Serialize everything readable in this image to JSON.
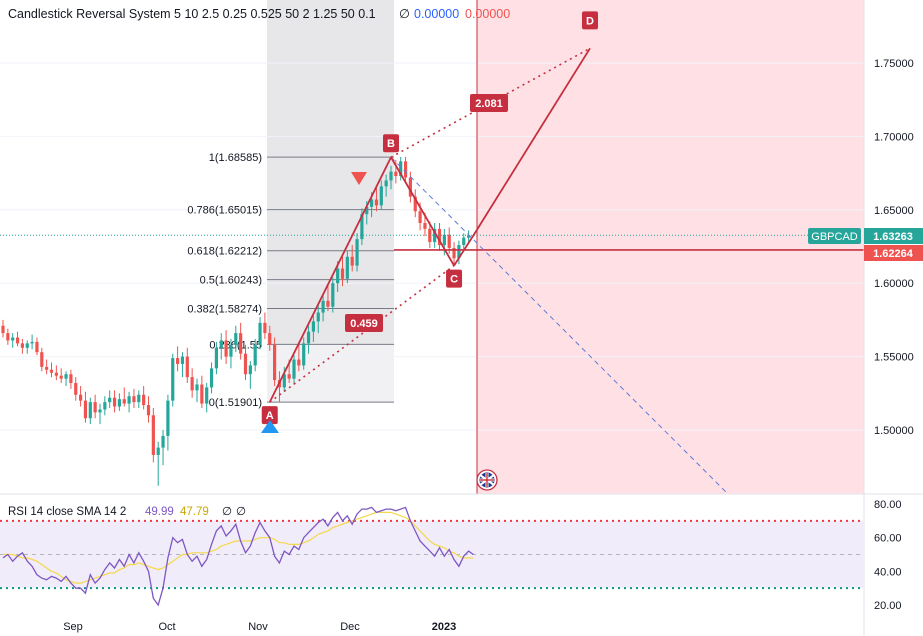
{
  "header": {
    "title": "Candlestick Reversal System 5 10 2.5 0.25 0.525 50 2 1.25 50 0.1",
    "null_symbol": "∅",
    "value_1": "0.00000",
    "value_2": "0.00000"
  },
  "price_axis": {
    "ticks": [
      "1.75000",
      "1.70000",
      "1.65000",
      "1.60000",
      "1.55000",
      "1.50000"
    ],
    "symbol": "GBPCAD",
    "last_price": "1.63263",
    "line_price": "1.62264"
  },
  "time_axis": {
    "labels": [
      "Sep",
      "Oct",
      "Nov",
      "Dec",
      "2023"
    ]
  },
  "fib_levels": [
    {
      "label": "1(1.68585)",
      "price": 1.68585
    },
    {
      "label": "0.786(1.65015)",
      "price": 1.65015
    },
    {
      "label": "0.618(1.62212)",
      "price": 1.62212
    },
    {
      "label": "0.5(1.60243)",
      "price": 1.60243
    },
    {
      "label": "0.382(1.58274)",
      "price": 1.58274
    },
    {
      "label": "0.236(1.55",
      "price": 1.55836
    },
    {
      "label": "0(1.51901)",
      "price": 1.51901
    }
  ],
  "pattern": {
    "points": {
      "A": "A",
      "B": "B",
      "C": "C",
      "D": "D"
    },
    "ratio_bd": "2.081",
    "ratio_ac": "0.459"
  },
  "rsi": {
    "title": "RSI 14 close SMA 14 2",
    "value": "49.99",
    "sma": "47.79",
    "null_1": "∅",
    "null_2": "∅",
    "ticks": [
      "80.00",
      "60.00",
      "40.00",
      "20.00"
    ]
  },
  "colors": {
    "up": "#26a69a",
    "down": "#ef5350",
    "pattern": "#c62f3f",
    "rsi_line": "#7e57c2",
    "rsi_sma": "#f5d84a",
    "blue": "#2962ff",
    "shade": "#ffe0e3",
    "fib_bg": "#e7e7e9"
  },
  "chart_data": {
    "type": "candlestick",
    "symbol": "GBPCAD",
    "y_range": [
      1.46,
      1.785
    ],
    "rsi_range": [
      18,
      82
    ],
    "candles": [
      {
        "o": 1.571,
        "h": 1.575,
        "l": 1.563,
        "c": 1.566
      },
      {
        "o": 1.566,
        "h": 1.569,
        "l": 1.558,
        "c": 1.561
      },
      {
        "o": 1.561,
        "h": 1.566,
        "l": 1.556,
        "c": 1.563
      },
      {
        "o": 1.563,
        "h": 1.567,
        "l": 1.557,
        "c": 1.559
      },
      {
        "o": 1.559,
        "h": 1.562,
        "l": 1.552,
        "c": 1.556
      },
      {
        "o": 1.556,
        "h": 1.561,
        "l": 1.552,
        "c": 1.559
      },
      {
        "o": 1.559,
        "h": 1.565,
        "l": 1.555,
        "c": 1.56
      },
      {
        "o": 1.56,
        "h": 1.563,
        "l": 1.551,
        "c": 1.553
      },
      {
        "o": 1.553,
        "h": 1.556,
        "l": 1.54,
        "c": 1.543
      },
      {
        "o": 1.543,
        "h": 1.548,
        "l": 1.538,
        "c": 1.541
      },
      {
        "o": 1.541,
        "h": 1.546,
        "l": 1.536,
        "c": 1.539
      },
      {
        "o": 1.539,
        "h": 1.544,
        "l": 1.534,
        "c": 1.537
      },
      {
        "o": 1.537,
        "h": 1.542,
        "l": 1.532,
        "c": 1.535
      },
      {
        "o": 1.535,
        "h": 1.54,
        "l": 1.53,
        "c": 1.538
      },
      {
        "o": 1.538,
        "h": 1.541,
        "l": 1.528,
        "c": 1.532
      },
      {
        "o": 1.532,
        "h": 1.536,
        "l": 1.52,
        "c": 1.524
      },
      {
        "o": 1.524,
        "h": 1.53,
        "l": 1.516,
        "c": 1.52
      },
      {
        "o": 1.52,
        "h": 1.526,
        "l": 1.505,
        "c": 1.508
      },
      {
        "o": 1.508,
        "h": 1.522,
        "l": 1.504,
        "c": 1.519
      },
      {
        "o": 1.519,
        "h": 1.524,
        "l": 1.508,
        "c": 1.512
      },
      {
        "o": 1.512,
        "h": 1.518,
        "l": 1.504,
        "c": 1.514
      },
      {
        "o": 1.514,
        "h": 1.523,
        "l": 1.51,
        "c": 1.519
      },
      {
        "o": 1.519,
        "h": 1.527,
        "l": 1.515,
        "c": 1.522
      },
      {
        "o": 1.522,
        "h": 1.527,
        "l": 1.512,
        "c": 1.516
      },
      {
        "o": 1.516,
        "h": 1.525,
        "l": 1.513,
        "c": 1.521
      },
      {
        "o": 1.521,
        "h": 1.529,
        "l": 1.516,
        "c": 1.518
      },
      {
        "o": 1.518,
        "h": 1.526,
        "l": 1.512,
        "c": 1.523
      },
      {
        "o": 1.523,
        "h": 1.528,
        "l": 1.515,
        "c": 1.519
      },
      {
        "o": 1.519,
        "h": 1.527,
        "l": 1.515,
        "c": 1.524
      },
      {
        "o": 1.524,
        "h": 1.53,
        "l": 1.514,
        "c": 1.517
      },
      {
        "o": 1.517,
        "h": 1.523,
        "l": 1.505,
        "c": 1.51
      },
      {
        "o": 1.51,
        "h": 1.515,
        "l": 1.478,
        "c": 1.483
      },
      {
        "o": 1.483,
        "h": 1.492,
        "l": 1.462,
        "c": 1.488
      },
      {
        "o": 1.488,
        "h": 1.5,
        "l": 1.476,
        "c": 1.496
      },
      {
        "o": 1.496,
        "h": 1.524,
        "l": 1.486,
        "c": 1.52
      },
      {
        "o": 1.52,
        "h": 1.552,
        "l": 1.516,
        "c": 1.549
      },
      {
        "o": 1.549,
        "h": 1.557,
        "l": 1.54,
        "c": 1.545
      },
      {
        "o": 1.545,
        "h": 1.553,
        "l": 1.536,
        "c": 1.55
      },
      {
        "o": 1.55,
        "h": 1.556,
        "l": 1.532,
        "c": 1.536
      },
      {
        "o": 1.536,
        "h": 1.542,
        "l": 1.522,
        "c": 1.527
      },
      {
        "o": 1.527,
        "h": 1.535,
        "l": 1.519,
        "c": 1.531
      },
      {
        "o": 1.531,
        "h": 1.537,
        "l": 1.515,
        "c": 1.518
      },
      {
        "o": 1.518,
        "h": 1.532,
        "l": 1.512,
        "c": 1.529
      },
      {
        "o": 1.529,
        "h": 1.546,
        "l": 1.525,
        "c": 1.542
      },
      {
        "o": 1.542,
        "h": 1.56,
        "l": 1.538,
        "c": 1.556
      },
      {
        "o": 1.556,
        "h": 1.566,
        "l": 1.548,
        "c": 1.561
      },
      {
        "o": 1.561,
        "h": 1.568,
        "l": 1.545,
        "c": 1.55
      },
      {
        "o": 1.55,
        "h": 1.562,
        "l": 1.542,
        "c": 1.558
      },
      {
        "o": 1.558,
        "h": 1.571,
        "l": 1.553,
        "c": 1.566
      },
      {
        "o": 1.566,
        "h": 1.573,
        "l": 1.548,
        "c": 1.552
      },
      {
        "o": 1.552,
        "h": 1.558,
        "l": 1.534,
        "c": 1.538
      },
      {
        "o": 1.538,
        "h": 1.547,
        "l": 1.528,
        "c": 1.544
      },
      {
        "o": 1.544,
        "h": 1.562,
        "l": 1.54,
        "c": 1.558
      },
      {
        "o": 1.558,
        "h": 1.577,
        "l": 1.555,
        "c": 1.573
      },
      {
        "o": 1.573,
        "h": 1.58,
        "l": 1.562,
        "c": 1.566
      },
      {
        "o": 1.566,
        "h": 1.571,
        "l": 1.554,
        "c": 1.558
      },
      {
        "o": 1.558,
        "h": 1.563,
        "l": 1.53,
        "c": 1.534
      },
      {
        "o": 1.534,
        "h": 1.54,
        "l": 1.519,
        "c": 1.529
      },
      {
        "o": 1.529,
        "h": 1.543,
        "l": 1.526,
        "c": 1.538
      },
      {
        "o": 1.538,
        "h": 1.548,
        "l": 1.532,
        "c": 1.535
      },
      {
        "o": 1.535,
        "h": 1.551,
        "l": 1.531,
        "c": 1.548
      },
      {
        "o": 1.548,
        "h": 1.559,
        "l": 1.54,
        "c": 1.544
      },
      {
        "o": 1.544,
        "h": 1.563,
        "l": 1.541,
        "c": 1.559
      },
      {
        "o": 1.559,
        "h": 1.571,
        "l": 1.552,
        "c": 1.567
      },
      {
        "o": 1.567,
        "h": 1.578,
        "l": 1.56,
        "c": 1.574
      },
      {
        "o": 1.574,
        "h": 1.586,
        "l": 1.566,
        "c": 1.58
      },
      {
        "o": 1.58,
        "h": 1.593,
        "l": 1.574,
        "c": 1.588
      },
      {
        "o": 1.588,
        "h": 1.6,
        "l": 1.581,
        "c": 1.584
      },
      {
        "o": 1.584,
        "h": 1.604,
        "l": 1.58,
        "c": 1.6
      },
      {
        "o": 1.6,
        "h": 1.615,
        "l": 1.594,
        "c": 1.61
      },
      {
        "o": 1.61,
        "h": 1.618,
        "l": 1.598,
        "c": 1.603
      },
      {
        "o": 1.603,
        "h": 1.622,
        "l": 1.6,
        "c": 1.618
      },
      {
        "o": 1.618,
        "h": 1.626,
        "l": 1.608,
        "c": 1.612
      },
      {
        "o": 1.612,
        "h": 1.634,
        "l": 1.608,
        "c": 1.63
      },
      {
        "o": 1.63,
        "h": 1.651,
        "l": 1.626,
        "c": 1.647
      },
      {
        "o": 1.647,
        "h": 1.656,
        "l": 1.64,
        "c": 1.652
      },
      {
        "o": 1.652,
        "h": 1.662,
        "l": 1.645,
        "c": 1.657
      },
      {
        "o": 1.657,
        "h": 1.666,
        "l": 1.649,
        "c": 1.653
      },
      {
        "o": 1.653,
        "h": 1.67,
        "l": 1.65,
        "c": 1.666
      },
      {
        "o": 1.666,
        "h": 1.674,
        "l": 1.659,
        "c": 1.67
      },
      {
        "o": 1.67,
        "h": 1.68,
        "l": 1.664,
        "c": 1.676
      },
      {
        "o": 1.676,
        "h": 1.684,
        "l": 1.668,
        "c": 1.673
      },
      {
        "o": 1.673,
        "h": 1.686,
        "l": 1.67,
        "c": 1.683
      },
      {
        "o": 1.683,
        "h": 1.686,
        "l": 1.668,
        "c": 1.672
      },
      {
        "o": 1.672,
        "h": 1.676,
        "l": 1.655,
        "c": 1.659
      },
      {
        "o": 1.659,
        "h": 1.664,
        "l": 1.645,
        "c": 1.649
      },
      {
        "o": 1.649,
        "h": 1.655,
        "l": 1.636,
        "c": 1.641
      },
      {
        "o": 1.641,
        "h": 1.648,
        "l": 1.632,
        "c": 1.637
      },
      {
        "o": 1.637,
        "h": 1.642,
        "l": 1.624,
        "c": 1.628
      },
      {
        "o": 1.628,
        "h": 1.641,
        "l": 1.624,
        "c": 1.637
      },
      {
        "o": 1.637,
        "h": 1.641,
        "l": 1.622,
        "c": 1.626
      },
      {
        "o": 1.626,
        "h": 1.637,
        "l": 1.619,
        "c": 1.633
      },
      {
        "o": 1.633,
        "h": 1.638,
        "l": 1.62,
        "c": 1.624
      },
      {
        "o": 1.624,
        "h": 1.628,
        "l": 1.612,
        "c": 1.617
      },
      {
        "o": 1.617,
        "h": 1.629,
        "l": 1.613,
        "c": 1.626
      },
      {
        "o": 1.626,
        "h": 1.634,
        "l": 1.622,
        "c": 1.631
      },
      {
        "o": 1.631,
        "h": 1.636,
        "l": 1.627,
        "c": 1.6326
      }
    ],
    "rsi": [
      48,
      50,
      46,
      49,
      51,
      46,
      43,
      38,
      36,
      35,
      37,
      36,
      34,
      37,
      33,
      30,
      30,
      27,
      38,
      33,
      36,
      41,
      45,
      42,
      47,
      43,
      50,
      45,
      51,
      46,
      40,
      24,
      20,
      30,
      48,
      60,
      57,
      59,
      50,
      46,
      49,
      43,
      47,
      56,
      64,
      67,
      61,
      64,
      68,
      58,
      51,
      55,
      63,
      69,
      64,
      60,
      49,
      45,
      52,
      50,
      55,
      53,
      60,
      63,
      66,
      69,
      71,
      67,
      72,
      75,
      70,
      73,
      68,
      74,
      77,
      77,
      78,
      75,
      76,
      77,
      77,
      76,
      77,
      78,
      70,
      64,
      58,
      55,
      52,
      49,
      54,
      49,
      53,
      47,
      43,
      49,
      52,
      50
    ],
    "rsi_sma": [
      50,
      50,
      50,
      49,
      48,
      48,
      47,
      46,
      44,
      42,
      40,
      39,
      37,
      35,
      34,
      33,
      33,
      34,
      35,
      36,
      37,
      38,
      39,
      39,
      41,
      42,
      44,
      44,
      45,
      44,
      43,
      42,
      41,
      42,
      44,
      46,
      48,
      50,
      50,
      51,
      51,
      51,
      51,
      52,
      53,
      55,
      56,
      57,
      58,
      58,
      58,
      58,
      59,
      60,
      60,
      60,
      59,
      57,
      57,
      56,
      56,
      56,
      57,
      58,
      60,
      62,
      63,
      64,
      66,
      67,
      68,
      69,
      70,
      71,
      72,
      73,
      74,
      75,
      75,
      75,
      75,
      74,
      73,
      72,
      70,
      67,
      64,
      61,
      58,
      56,
      55,
      54,
      52,
      51,
      49,
      48,
      48,
      47.79
    ]
  }
}
